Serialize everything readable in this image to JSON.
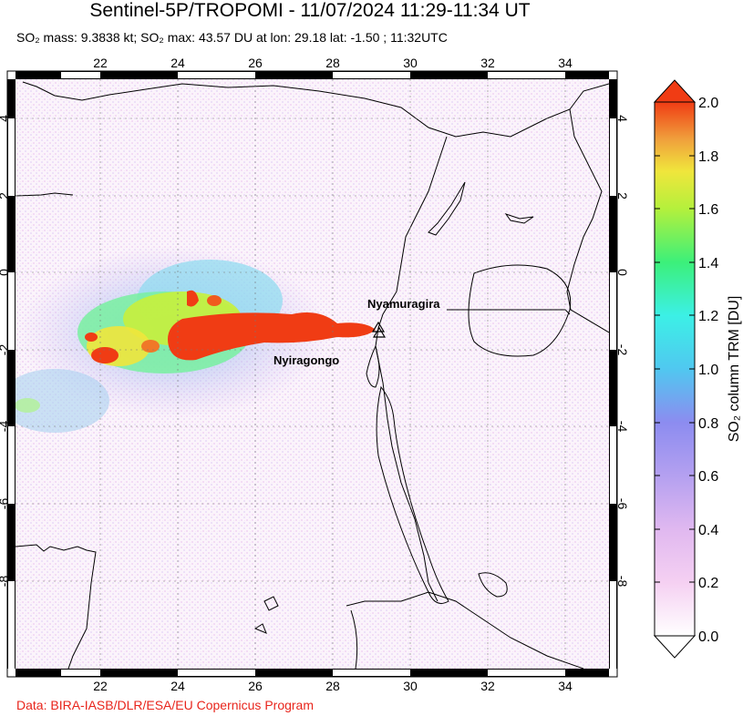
{
  "title": "Sentinel-5P/TROPOMI - 11/07/2024 11:29-11:34 UT",
  "subtitle": "SO₂ mass: 9.3838 kt; SO₂ max: 43.57 DU at lon: 29.18 lat: -1.50 ; 11:32UTC",
  "credit": "Data: BIRA-IASB/DLR/ESA/EU Copernicus Program",
  "map": {
    "lon_range": [
      20.2,
      35.0
    ],
    "lat_range": [
      -10.2,
      5.0
    ],
    "x_ticks": [
      "22",
      "24",
      "26",
      "28",
      "30",
      "32",
      "34"
    ],
    "y_ticks": [
      "4",
      "2",
      "0",
      "-2",
      "-4",
      "-6",
      "-8"
    ],
    "volcanoes": [
      {
        "name": "Nyamuragira",
        "lon": 29.2,
        "lat": -1.41
      },
      {
        "name": "Nyiragongo",
        "lon": 29.25,
        "lat": -1.52
      }
    ]
  },
  "colorbar": {
    "label": "SO₂ column TRM [DU]",
    "ticks": [
      "2.0",
      "1.8",
      "1.6",
      "1.4",
      "1.2",
      "1.0",
      "0.8",
      "0.6",
      "0.4",
      "0.2",
      "0.0"
    ],
    "min": 0.0,
    "max": 2.0,
    "colors": [
      "#ffffff",
      "#f5cdf0",
      "#c8b4f0",
      "#8c8cf0",
      "#3cb4f0",
      "#3cf0f0",
      "#3cf08c",
      "#78f03c",
      "#f0f03c",
      "#f0b43c",
      "#f0783c",
      "#f03c14"
    ]
  }
}
